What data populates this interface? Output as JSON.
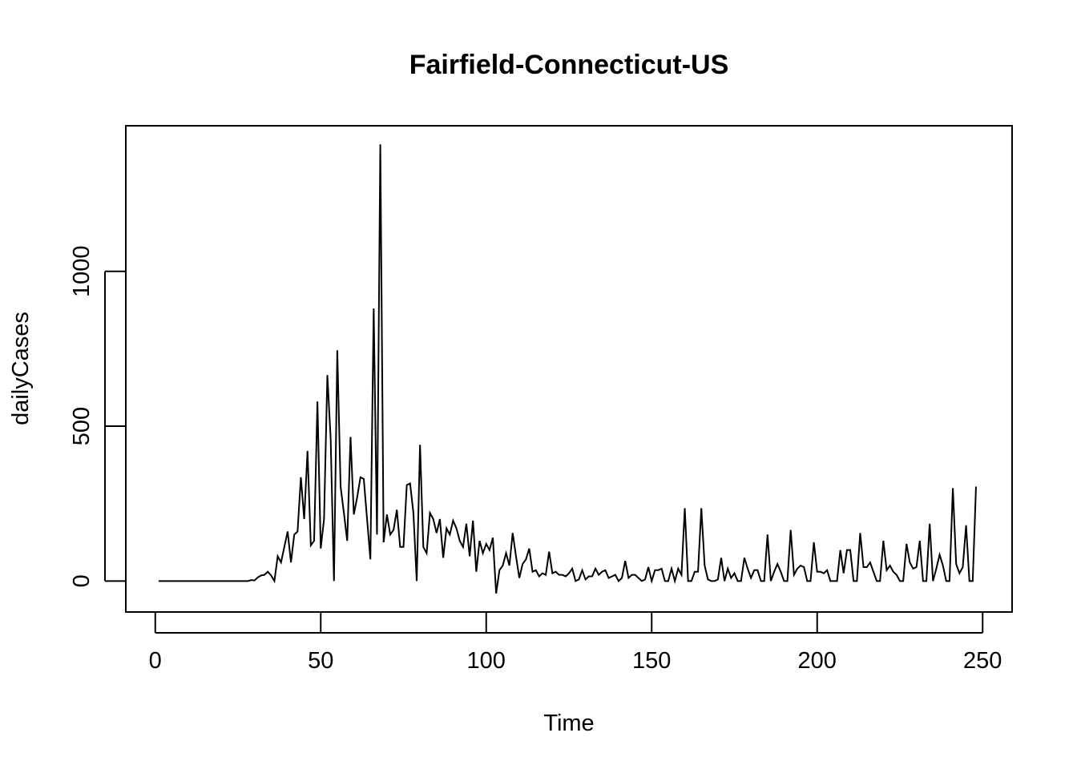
{
  "chart_data": {
    "type": "line",
    "title": "Fairfield-Connecticut-US",
    "xlabel": "Time",
    "ylabel": "dailyCases",
    "xlim": [
      -8.9,
      258.9
    ],
    "ylim": [
      -100,
      1470
    ],
    "x_ticks": [
      0,
      50,
      100,
      150,
      200,
      250
    ],
    "y_ticks": [
      0,
      500,
      1000
    ],
    "grid": false,
    "line_color": "#000000",
    "x": [
      1,
      2,
      3,
      4,
      5,
      6,
      7,
      8,
      9,
      10,
      11,
      12,
      13,
      14,
      15,
      16,
      17,
      18,
      19,
      20,
      21,
      22,
      23,
      24,
      25,
      26,
      27,
      28,
      29,
      30,
      31,
      32,
      33,
      34,
      35,
      36,
      37,
      38,
      39,
      40,
      41,
      42,
      43,
      44,
      45,
      46,
      47,
      48,
      49,
      50,
      51,
      52,
      53,
      54,
      55,
      56,
      57,
      58,
      59,
      60,
      61,
      62,
      63,
      64,
      65,
      66,
      67,
      68,
      69,
      70,
      71,
      72,
      73,
      74,
      75,
      76,
      77,
      78,
      79,
      80,
      81,
      82,
      83,
      84,
      85,
      86,
      87,
      88,
      89,
      90,
      91,
      92,
      93,
      94,
      95,
      96,
      97,
      98,
      99,
      100,
      101,
      102,
      103,
      104,
      105,
      106,
      107,
      108,
      109,
      110,
      111,
      112,
      113,
      114,
      115,
      116,
      117,
      118,
      119,
      120,
      121,
      122,
      123,
      124,
      125,
      126,
      127,
      128,
      129,
      130,
      131,
      132,
      133,
      134,
      135,
      136,
      137,
      138,
      139,
      140,
      141,
      142,
      143,
      144,
      145,
      146,
      147,
      148,
      149,
      150,
      151,
      152,
      153,
      154,
      155,
      156,
      157,
      158,
      159,
      160,
      161,
      162,
      163,
      164,
      165,
      166,
      167,
      168,
      169,
      170,
      171,
      172,
      173,
      174,
      175,
      176,
      177,
      178,
      179,
      180,
      181,
      182,
      183,
      184,
      185,
      186,
      187,
      188,
      189,
      190,
      191,
      192,
      193,
      194,
      195,
      196,
      197,
      198,
      199,
      200,
      201,
      202,
      203,
      204,
      205,
      206,
      207,
      208,
      209,
      210,
      211,
      212,
      213,
      214,
      215,
      216,
      217,
      218,
      219,
      220,
      221,
      222,
      223,
      224,
      225,
      226,
      227,
      228,
      229,
      230,
      231,
      232,
      233,
      234,
      235,
      236,
      237,
      238,
      239,
      240,
      241,
      242,
      243,
      244,
      245,
      246,
      247,
      248
    ],
    "values": [
      0,
      0,
      0,
      0,
      0,
      0,
      0,
      0,
      0,
      0,
      0,
      0,
      0,
      0,
      0,
      0,
      0,
      0,
      0,
      0,
      0,
      0,
      0,
      0,
      0,
      0,
      0,
      0,
      3,
      2,
      12,
      18,
      20,
      30,
      18,
      0,
      80,
      60,
      110,
      160,
      60,
      150,
      160,
      335,
      200,
      420,
      115,
      130,
      580,
      105,
      200,
      665,
      460,
      0,
      745,
      305,
      220,
      130,
      465,
      215,
      270,
      335,
      330,
      200,
      70,
      880,
      150,
      1410,
      125,
      215,
      150,
      165,
      230,
      110,
      110,
      310,
      315,
      220,
      0,
      440,
      110,
      90,
      220,
      200,
      155,
      200,
      75,
      170,
      150,
      195,
      170,
      130,
      110,
      185,
      80,
      195,
      30,
      130,
      90,
      120,
      100,
      140,
      -40,
      35,
      50,
      90,
      50,
      155,
      80,
      10,
      55,
      70,
      105,
      30,
      35,
      15,
      25,
      20,
      95,
      25,
      30,
      20,
      20,
      15,
      25,
      40,
      0,
      5,
      35,
      5,
      15,
      15,
      40,
      20,
      30,
      35,
      10,
      15,
      20,
      0,
      10,
      65,
      10,
      20,
      20,
      10,
      0,
      5,
      45,
      0,
      35,
      35,
      40,
      0,
      0,
      40,
      0,
      40,
      20,
      235,
      0,
      0,
      30,
      30,
      235,
      50,
      5,
      0,
      0,
      5,
      75,
      0,
      40,
      10,
      25,
      0,
      0,
      75,
      40,
      10,
      35,
      35,
      0,
      0,
      150,
      0,
      30,
      55,
      30,
      0,
      0,
      165,
      20,
      40,
      50,
      45,
      0,
      0,
      125,
      30,
      30,
      25,
      35,
      0,
      0,
      0,
      100,
      25,
      100,
      100,
      0,
      0,
      155,
      45,
      45,
      60,
      30,
      0,
      0,
      130,
      35,
      50,
      30,
      20,
      0,
      0,
      120,
      60,
      40,
      45,
      130,
      0,
      0,
      185,
      0,
      40,
      85,
      50,
      0,
      0,
      300,
      55,
      25,
      45,
      180,
      0,
      0,
      305
    ]
  }
}
